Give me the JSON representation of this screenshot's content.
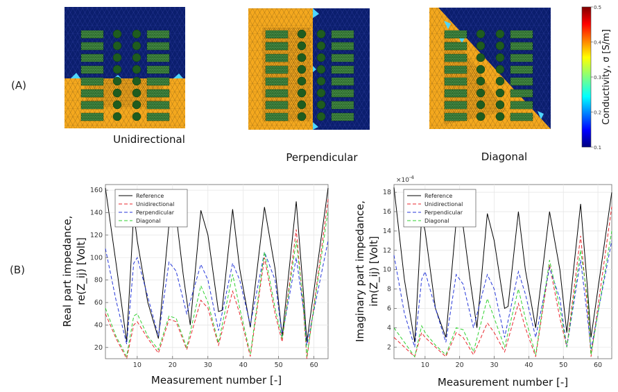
{
  "panel_a_label": "(A)",
  "panel_b_label": "(B)",
  "mesh_captions": [
    "Unidirectional",
    "Perpendicular",
    "Diagonal"
  ],
  "colorbar": {
    "label": "Conductivity, σ [S/m]",
    "ticks": [
      "0.5",
      "0.4",
      "0.3",
      "0.2",
      "0.1"
    ],
    "range": [
      0.1,
      0.5
    ]
  },
  "colors": {
    "background_region": "#f4a81e",
    "target_region": "#0b1e6e",
    "electrode_fill": "#1f5c1f",
    "edge_high": "#4fd6ff",
    "reference_line": "#000000",
    "unidirectional_line": "#e8262b",
    "perpendicular_line": "#2436d9",
    "diagonal_line": "#2fd12f"
  },
  "chart_data": [
    {
      "type": "line",
      "xlabel": "Measurement number [-]",
      "ylabel_line1": "Real part impedance,",
      "ylabel_line2": "re(Z_ij) [Volt]",
      "xlim": [
        1,
        64
      ],
      "ylim": [
        10,
        165
      ],
      "x_ticks": [
        10,
        20,
        30,
        40,
        50,
        60
      ],
      "y_ticks": [
        20,
        40,
        60,
        80,
        100,
        120,
        140,
        160
      ],
      "legend": "top-left",
      "series": [
        {
          "name": "Reference",
          "points": [
            [
              1,
              162
            ],
            [
              4,
              95
            ],
            [
              7,
              25
            ],
            [
              9,
              140
            ],
            [
              10,
              115
            ],
            [
              13,
              60
            ],
            [
              16,
              28
            ],
            [
              19,
              130
            ],
            [
              21,
              138
            ],
            [
              23,
              85
            ],
            [
              25,
              40
            ],
            [
              28,
              142
            ],
            [
              30,
              120
            ],
            [
              33,
              52
            ],
            [
              34,
              53
            ],
            [
              37,
              143
            ],
            [
              39,
              90
            ],
            [
              42,
              38
            ],
            [
              46,
              145
            ],
            [
              49,
              90
            ],
            [
              51,
              30
            ],
            [
              55,
              150
            ],
            [
              57,
              70
            ],
            [
              58,
              25
            ],
            [
              64,
              162
            ]
          ]
        },
        {
          "name": "Unidirectional",
          "points": [
            [
              1,
              50
            ],
            [
              4,
              28
            ],
            [
              7,
              10
            ],
            [
              9,
              40
            ],
            [
              10,
              43
            ],
            [
              13,
              28
            ],
            [
              16,
              15
            ],
            [
              19,
              45
            ],
            [
              21,
              43
            ],
            [
              24,
              18
            ],
            [
              28,
              62
            ],
            [
              30,
              55
            ],
            [
              33,
              22
            ],
            [
              37,
              70
            ],
            [
              39,
              50
            ],
            [
              42,
              12
            ],
            [
              46,
              100
            ],
            [
              49,
              50
            ],
            [
              51,
              25
            ],
            [
              55,
              125
            ],
            [
              57,
              55
            ],
            [
              58,
              10
            ],
            [
              64,
              152
            ]
          ]
        },
        {
          "name": "Perpendicular",
          "points": [
            [
              1,
              108
            ],
            [
              4,
              62
            ],
            [
              7,
              23
            ],
            [
              9,
              95
            ],
            [
              10,
              100
            ],
            [
              13,
              65
            ],
            [
              16,
              30
            ],
            [
              19,
              96
            ],
            [
              21,
              88
            ],
            [
              24,
              50
            ],
            [
              28,
              94
            ],
            [
              30,
              80
            ],
            [
              33,
              35
            ],
            [
              37,
              95
            ],
            [
              39,
              80
            ],
            [
              42,
              40
            ],
            [
              46,
              105
            ],
            [
              49,
              80
            ],
            [
              51,
              30
            ],
            [
              55,
              100
            ],
            [
              57,
              55
            ],
            [
              58,
              22
            ],
            [
              64,
              115
            ]
          ]
        },
        {
          "name": "Diagonal",
          "points": [
            [
              1,
              55
            ],
            [
              4,
              30
            ],
            [
              7,
              12
            ],
            [
              9,
              48
            ],
            [
              10,
              50
            ],
            [
              13,
              30
            ],
            [
              16,
              18
            ],
            [
              19,
              48
            ],
            [
              21,
              46
            ],
            [
              24,
              20
            ],
            [
              28,
              75
            ],
            [
              30,
              60
            ],
            [
              33,
              24
            ],
            [
              37,
              85
            ],
            [
              39,
              55
            ],
            [
              42,
              14
            ],
            [
              46,
              105
            ],
            [
              49,
              55
            ],
            [
              51,
              28
            ],
            [
              55,
              115
            ],
            [
              57,
              60
            ],
            [
              58,
              12
            ],
            [
              64,
              142
            ]
          ]
        }
      ]
    },
    {
      "type": "line",
      "xlabel": "Measurement number [-]",
      "ylabel_line1": "Imaginary part impedance,",
      "ylabel_line2": "im(Z_ij) [Volt]",
      "scale_label": "×10",
      "scale_exp": "-4",
      "xlim": [
        1,
        64
      ],
      "ylim": [
        0.8,
        18.8
      ],
      "x_ticks": [
        10,
        20,
        30,
        40,
        50,
        60
      ],
      "y_ticks": [
        2,
        4,
        6,
        8,
        10,
        12,
        14,
        16,
        18
      ],
      "legend": "top-left",
      "series": [
        {
          "name": "Reference",
          "points": [
            [
              1,
              18.5
            ],
            [
              4,
              9
            ],
            [
              7,
              2.5
            ],
            [
              9,
              15.5
            ],
            [
              10,
              14
            ],
            [
              13,
              6
            ],
            [
              16,
              3
            ],
            [
              19,
              15
            ],
            [
              21,
              14.5
            ],
            [
              23,
              9
            ],
            [
              25,
              4
            ],
            [
              28,
              15.8
            ],
            [
              30,
              13
            ],
            [
              33,
              6
            ],
            [
              34,
              6.2
            ],
            [
              37,
              16
            ],
            [
              39,
              10
            ],
            [
              42,
              4
            ],
            [
              46,
              16
            ],
            [
              49,
              10
            ],
            [
              51,
              3.5
            ],
            [
              55,
              16.8
            ],
            [
              57,
              8
            ],
            [
              58,
              3
            ],
            [
              64,
              18
            ]
          ]
        },
        {
          "name": "Unidirectional",
          "points": [
            [
              1,
              3
            ],
            [
              4,
              2
            ],
            [
              7,
              1
            ],
            [
              9,
              3.5
            ],
            [
              10,
              3
            ],
            [
              13,
              2
            ],
            [
              16,
              1
            ],
            [
              19,
              3.5
            ],
            [
              21,
              3
            ],
            [
              24,
              1.2
            ],
            [
              28,
              4.5
            ],
            [
              30,
              3.5
            ],
            [
              33,
              1.5
            ],
            [
              37,
              6.5
            ],
            [
              39,
              4
            ],
            [
              42,
              1
            ],
            [
              46,
              10.5
            ],
            [
              49,
              5
            ],
            [
              51,
              2
            ],
            [
              55,
              13.5
            ],
            [
              57,
              6
            ],
            [
              58,
              1
            ],
            [
              64,
              16.5
            ]
          ]
        },
        {
          "name": "Perpendicular",
          "points": [
            [
              1,
              11.5
            ],
            [
              4,
              5.5
            ],
            [
              7,
              2
            ],
            [
              9,
              9
            ],
            [
              10,
              9.8
            ],
            [
              13,
              6
            ],
            [
              16,
              2.5
            ],
            [
              19,
              9.5
            ],
            [
              21,
              8.5
            ],
            [
              24,
              4
            ],
            [
              28,
              9.5
            ],
            [
              30,
              8
            ],
            [
              33,
              3
            ],
            [
              37,
              9.8
            ],
            [
              39,
              7.5
            ],
            [
              42,
              3
            ],
            [
              46,
              10.2
            ],
            [
              49,
              7
            ],
            [
              51,
              2
            ],
            [
              55,
              11
            ],
            [
              57,
              5
            ],
            [
              58,
              1.8
            ],
            [
              64,
              13
            ]
          ]
        },
        {
          "name": "Diagonal",
          "points": [
            [
              1,
              4
            ],
            [
              4,
              2.5
            ],
            [
              7,
              1
            ],
            [
              9,
              4.2
            ],
            [
              10,
              3.5
            ],
            [
              13,
              2.2
            ],
            [
              16,
              1.2
            ],
            [
              19,
              4
            ],
            [
              21,
              3.8
            ],
            [
              24,
              1.5
            ],
            [
              28,
              7
            ],
            [
              30,
              5
            ],
            [
              33,
              2
            ],
            [
              37,
              8
            ],
            [
              39,
              5
            ],
            [
              42,
              1.2
            ],
            [
              46,
              11
            ],
            [
              49,
              6
            ],
            [
              51,
              2
            ],
            [
              55,
              12
            ],
            [
              57,
              7
            ],
            [
              58,
              1.2
            ],
            [
              64,
              14
            ]
          ]
        }
      ]
    }
  ]
}
